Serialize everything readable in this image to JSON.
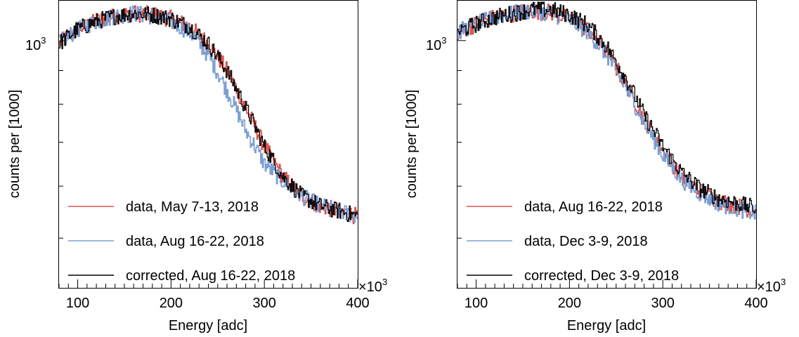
{
  "chart_data": [
    {
      "type": "line",
      "xlabel": "Energy [adc]",
      "ylabel": "counts per [1000]",
      "x_exponent_label": "×10",
      "x_exponent_power": "3",
      "y_tick_label_base": "10",
      "y_tick_label_power": "3",
      "xlim": [
        80,
        400
      ],
      "ylim_log": [
        420,
        1150
      ],
      "x_log": false,
      "y_log": true,
      "grid": false,
      "x_ticks": [
        "100",
        "200",
        "300",
        "400"
      ],
      "legend_position": "bottom-left",
      "series": [
        {
          "name": "data, May 7-13, 2018",
          "color": "#d9534f",
          "x": [
            80,
            100,
            120,
            140,
            160,
            180,
            200,
            220,
            240,
            260,
            280,
            300,
            320,
            340,
            360,
            380,
            400
          ],
          "y": [
            990,
            1040,
            1070,
            1090,
            1100,
            1095,
            1080,
            1050,
            990,
            900,
            790,
            690,
            620,
            580,
            560,
            550,
            540
          ]
        },
        {
          "name": "data, Aug 16-22, 2018",
          "color": "#7b9fd4",
          "x": [
            80,
            100,
            120,
            140,
            160,
            180,
            200,
            220,
            240,
            260,
            280,
            300,
            320,
            340,
            360,
            380,
            400
          ],
          "y": [
            990,
            1040,
            1070,
            1090,
            1100,
            1090,
            1070,
            1030,
            950,
            840,
            730,
            650,
            610,
            580,
            560,
            550,
            540
          ]
        },
        {
          "name": "corrected, Aug 16-22, 2018",
          "color": "#000000",
          "x": [
            80,
            100,
            120,
            140,
            160,
            180,
            200,
            220,
            240,
            260,
            280,
            300,
            320,
            340,
            360,
            380,
            400
          ],
          "y": [
            990,
            1040,
            1070,
            1090,
            1100,
            1095,
            1080,
            1050,
            990,
            900,
            790,
            690,
            620,
            580,
            560,
            550,
            540
          ]
        }
      ]
    },
    {
      "type": "line",
      "xlabel": "Energy [adc]",
      "ylabel": "counts per [1000]",
      "x_exponent_label": "×10",
      "x_exponent_power": "3",
      "y_tick_label_base": "10",
      "y_tick_label_power": "3",
      "xlim": [
        80,
        400
      ],
      "ylim_log": [
        420,
        1150
      ],
      "x_log": false,
      "y_log": true,
      "grid": false,
      "x_ticks": [
        "100",
        "200",
        "300",
        "400"
      ],
      "legend_position": "bottom-left",
      "series": [
        {
          "name": "data, Aug 16-22, 2018",
          "color": "#d9534f",
          "x": [
            80,
            100,
            120,
            140,
            160,
            180,
            200,
            220,
            240,
            260,
            280,
            300,
            320,
            340,
            360,
            380,
            400
          ],
          "y": [
            1030,
            1060,
            1085,
            1100,
            1110,
            1105,
            1080,
            1040,
            960,
            860,
            760,
            680,
            620,
            590,
            570,
            560,
            550
          ]
        },
        {
          "name": "data, Dec 3-9, 2018",
          "color": "#7b9fd4",
          "x": [
            80,
            100,
            120,
            140,
            160,
            180,
            200,
            220,
            240,
            260,
            280,
            300,
            320,
            340,
            360,
            380,
            400
          ],
          "y": [
            1030,
            1060,
            1085,
            1100,
            1110,
            1100,
            1075,
            1030,
            950,
            850,
            750,
            670,
            615,
            585,
            565,
            555,
            545
          ]
        },
        {
          "name": "corrected, Dec 3-9, 2018",
          "color": "#000000",
          "x": [
            80,
            100,
            120,
            140,
            160,
            180,
            200,
            220,
            240,
            260,
            280,
            300,
            320,
            340,
            360,
            380,
            400
          ],
          "y": [
            1030,
            1060,
            1085,
            1100,
            1115,
            1115,
            1095,
            1055,
            980,
            880,
            770,
            690,
            630,
            595,
            575,
            565,
            555
          ]
        }
      ]
    }
  ]
}
